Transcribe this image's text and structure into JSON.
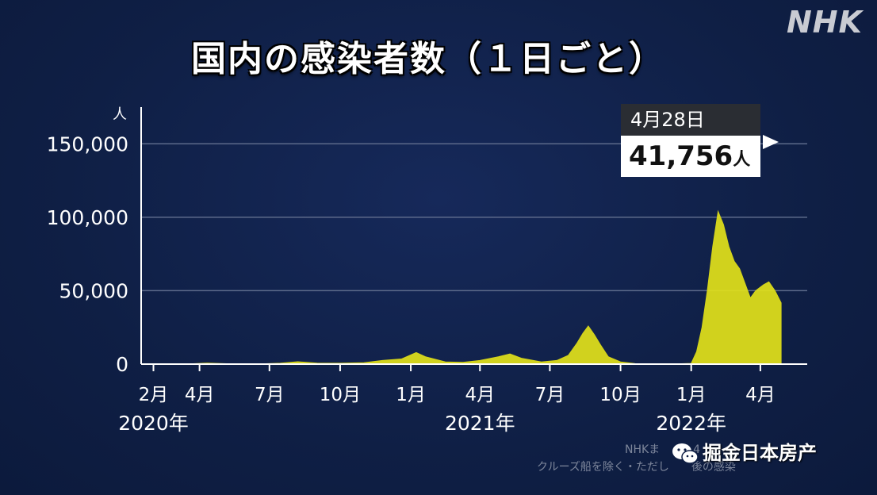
{
  "title": "国内の感染者数（１日ごと）",
  "logo": "NHK",
  "y_unit": "人",
  "callout": {
    "date": "4月28日",
    "value": "41,756",
    "unit": "人"
  },
  "source_line1": "NHKま　　　4",
  "source_line2": "クルーズ船を除く・ただし　　後の感染",
  "watermark": "掘金日本房产",
  "colors": {
    "background": "#0f1f45",
    "series": "#e2e21a",
    "grid": "#5c6a8a",
    "axis": "#ffffff"
  },
  "chart_data": {
    "type": "area",
    "title": "国内の感染者数（１日ごと）",
    "ylabel": "人",
    "ylim": [
      0,
      175000
    ],
    "yticks": [
      0,
      50000,
      100000,
      150000
    ],
    "ytick_labels": [
      "0",
      "50,000",
      "100,000",
      "150,000"
    ],
    "grid": true,
    "xtick_labels": [
      "2月",
      "4月",
      "7月",
      "10月",
      "1月",
      "4月",
      "7月",
      "10月",
      "1月",
      "4月"
    ],
    "xtick_dates": [
      "2020-02-01",
      "2020-04-01",
      "2020-07-01",
      "2020-10-01",
      "2021-01-01",
      "2021-04-01",
      "2021-07-01",
      "2021-10-01",
      "2022-01-01",
      "2022-04-01"
    ],
    "year_labels": [
      {
        "label": "2020年",
        "date": "2020-02-01"
      },
      {
        "label": "2021年",
        "date": "2021-04-01"
      },
      {
        "label": "2022年",
        "date": "2022-01-01"
      }
    ],
    "x_range": [
      "2020-01-16",
      "2022-06-01"
    ],
    "series": [
      {
        "values": [
          [
            "2020-01-16",
            0
          ],
          [
            "2020-03-15",
            50
          ],
          [
            "2020-04-11",
            700
          ],
          [
            "2020-05-15",
            100
          ],
          [
            "2020-06-15",
            80
          ],
          [
            "2020-07-15",
            600
          ],
          [
            "2020-08-07",
            1600
          ],
          [
            "2020-09-01",
            700
          ],
          [
            "2020-10-01",
            600
          ],
          [
            "2020-11-01",
            900
          ],
          [
            "2020-11-25",
            2500
          ],
          [
            "2020-12-20",
            3500
          ],
          [
            "2021-01-08",
            7900
          ],
          [
            "2021-01-20",
            5000
          ],
          [
            "2021-02-15",
            1500
          ],
          [
            "2021-03-10",
            1200
          ],
          [
            "2021-04-01",
            2500
          ],
          [
            "2021-04-25",
            5000
          ],
          [
            "2021-05-10",
            6900
          ],
          [
            "2021-05-25",
            4000
          ],
          [
            "2021-06-20",
            1500
          ],
          [
            "2021-07-10",
            2500
          ],
          [
            "2021-07-25",
            6000
          ],
          [
            "2021-08-05",
            14000
          ],
          [
            "2021-08-13",
            21000
          ],
          [
            "2021-08-20",
            25900
          ],
          [
            "2021-08-28",
            20000
          ],
          [
            "2021-09-05",
            13000
          ],
          [
            "2021-09-15",
            5000
          ],
          [
            "2021-10-01",
            1500
          ],
          [
            "2021-10-20",
            300
          ],
          [
            "2021-11-15",
            150
          ],
          [
            "2021-12-15",
            200
          ],
          [
            "2022-01-01",
            500
          ],
          [
            "2022-01-08",
            8500
          ],
          [
            "2022-01-15",
            25000
          ],
          [
            "2022-01-22",
            50000
          ],
          [
            "2022-01-29",
            80000
          ],
          [
            "2022-02-05",
            104000
          ],
          [
            "2022-02-12",
            95000
          ],
          [
            "2022-02-19",
            80000
          ],
          [
            "2022-02-26",
            70000
          ],
          [
            "2022-03-05",
            65000
          ],
          [
            "2022-03-12",
            55000
          ],
          [
            "2022-03-19",
            45000
          ],
          [
            "2022-03-26",
            50000
          ],
          [
            "2022-04-05",
            54000
          ],
          [
            "2022-04-12",
            56000
          ],
          [
            "2022-04-20",
            50000
          ],
          [
            "2022-04-28",
            41756
          ]
        ]
      }
    ]
  }
}
